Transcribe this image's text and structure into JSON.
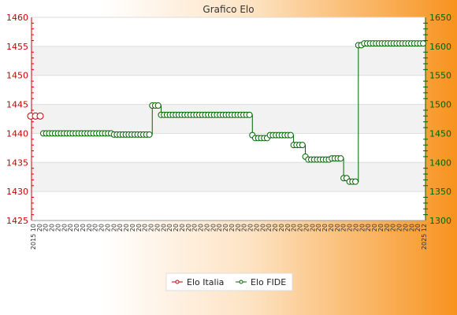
{
  "chart_data": {
    "type": "line",
    "title": "Grafico Elo",
    "xlabel": "",
    "ylabel": "",
    "y_left": {
      "lim": [
        1425,
        1460
      ],
      "ticks": [
        1425,
        1430,
        1435,
        1440,
        1445,
        1450,
        1455,
        1460
      ],
      "color": "#cc0000"
    },
    "y_right": {
      "lim": [
        1300,
        1650
      ],
      "ticks": [
        1300,
        1350,
        1400,
        1450,
        1500,
        1550,
        1600,
        1650
      ],
      "color": "#006400"
    },
    "x_first_label": "2015 10",
    "x_last_label": "2025 12",
    "x_repeat_label": "20",
    "grid": true,
    "legend_position": "bottom-center",
    "series": [
      {
        "name": "Elo Italia",
        "axis": "left",
        "color": "#cc0000",
        "values": [
          1443,
          1443,
          1443
        ]
      },
      {
        "name": "Elo FIDE",
        "axis": "right",
        "color": "#006400",
        "values": [
          1450,
          1450,
          1450,
          1450,
          1450,
          1450,
          1450,
          1450,
          1450,
          1450,
          1450,
          1450,
          1450,
          1450,
          1450,
          1450,
          1450,
          1450,
          1450,
          1450,
          1450,
          1450,
          1450,
          1450,
          1448,
          1448,
          1448,
          1448,
          1448,
          1448,
          1448,
          1448,
          1448,
          1448,
          1448,
          1448,
          1448,
          1498,
          1498,
          1498,
          1482,
          1482,
          1482,
          1482,
          1482,
          1482,
          1482,
          1482,
          1482,
          1482,
          1482,
          1482,
          1482,
          1482,
          1482,
          1482,
          1482,
          1482,
          1482,
          1482,
          1482,
          1482,
          1482,
          1482,
          1482,
          1482,
          1482,
          1482,
          1482,
          1482,
          1482,
          1447,
          1442,
          1442,
          1442,
          1442,
          1442,
          1447,
          1447,
          1447,
          1447,
          1447,
          1447,
          1447,
          1447,
          1430,
          1430,
          1430,
          1430,
          1410,
          1405,
          1405,
          1405,
          1405,
          1405,
          1405,
          1405,
          1405,
          1407,
          1407,
          1407,
          1407,
          1373,
          1373,
          1367,
          1367,
          1367,
          1602,
          1602,
          1605,
          1605,
          1605,
          1605,
          1605,
          1605,
          1605,
          1605,
          1605,
          1605,
          1605,
          1605,
          1605,
          1605,
          1605,
          1605,
          1605,
          1605,
          1605,
          1605,
          1605
        ]
      }
    ]
  }
}
